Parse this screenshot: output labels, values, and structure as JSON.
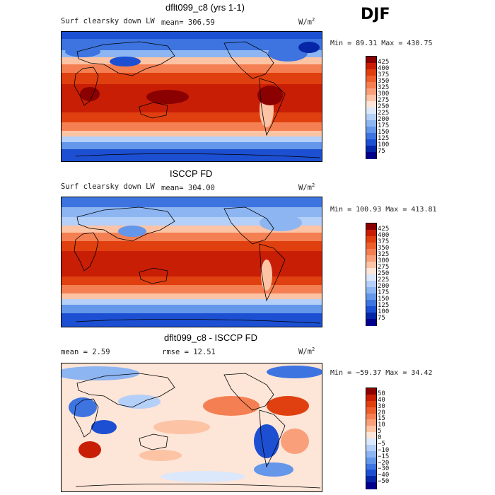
{
  "season": "DJF",
  "panels": [
    {
      "title": "dflt099_c8 (yrs 1-1)",
      "field": "Surf clearsky down LW",
      "mean": "mean= 306.59",
      "units": "W/m",
      "units_sup": "2",
      "minmax": "Min =  89.31 Max = 430.75",
      "colorbar": {
        "labels": [
          "425",
          "400",
          "375",
          "350",
          "325",
          "300",
          "275",
          "250",
          "225",
          "200",
          "175",
          "150",
          "125",
          "100",
          "75"
        ],
        "colors": [
          "#8b0000",
          "#c81e06",
          "#e0400f",
          "#ed5f2c",
          "#f47f52",
          "#f9a07b",
          "#fcc3a5",
          "#fde5d7",
          "#dbe8fb",
          "#b5d0f8",
          "#8db5f2",
          "#6496ea",
          "#3d74e0",
          "#1c4fd1",
          "#0626a8",
          "#00008b"
        ]
      }
    },
    {
      "title": "ISCCP FD",
      "field": "Surf clearsky down LW",
      "mean": "mean= 304.00",
      "units": "W/m",
      "units_sup": "2",
      "minmax": "Min = 100.93 Max = 413.81",
      "colorbar": {
        "labels": [
          "425",
          "400",
          "375",
          "350",
          "325",
          "300",
          "275",
          "250",
          "225",
          "200",
          "175",
          "150",
          "125",
          "100",
          "75"
        ],
        "colors": [
          "#8b0000",
          "#c81e06",
          "#e0400f",
          "#ed5f2c",
          "#f47f52",
          "#f9a07b",
          "#fcc3a5",
          "#fde5d7",
          "#dbe8fb",
          "#b5d0f8",
          "#8db5f2",
          "#6496ea",
          "#3d74e0",
          "#1c4fd1",
          "#0626a8",
          "#00008b"
        ]
      }
    },
    {
      "title": "dflt099_c8 - ISCCP FD",
      "mean": "mean =    2.59",
      "rmse": "rmse =  12.51",
      "units": "W/m",
      "units_sup": "2",
      "minmax": "Min = −59.37 Max =  34.42",
      "colorbar": {
        "labels": [
          "50",
          "40",
          "30",
          "20",
          "15",
          "10",
          "5",
          "0",
          "−5",
          "−10",
          "−15",
          "−20",
          "−30",
          "−40",
          "−50"
        ],
        "colors": [
          "#8b0000",
          "#c81e06",
          "#e0400f",
          "#ed5f2c",
          "#f47f52",
          "#f9a07b",
          "#fcc3a5",
          "#fde5d7",
          "#dbe8fb",
          "#b5d0f8",
          "#8db5f2",
          "#6496ea",
          "#3d74e0",
          "#1c4fd1",
          "#0626a8",
          "#00008b"
        ]
      }
    }
  ]
}
